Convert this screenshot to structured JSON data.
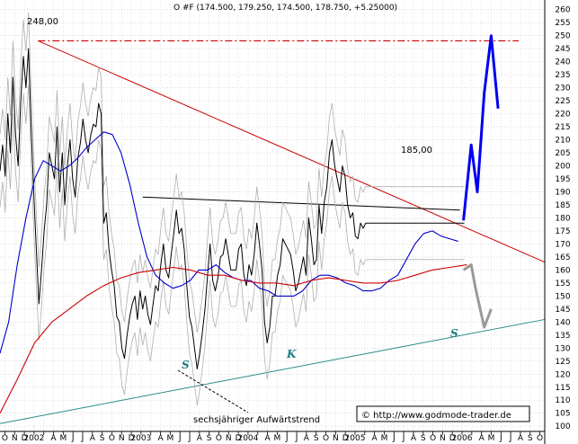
{
  "chart_data": {
    "type": "line",
    "title": "O #F (174.500, 179.250, 174.500, 178.750, +5.25000)",
    "y_ticks": [
      100,
      105,
      110,
      115,
      120,
      125,
      130,
      135,
      140,
      145,
      150,
      155,
      160,
      165,
      170,
      175,
      180,
      185,
      190,
      195,
      200,
      205,
      210,
      215,
      220,
      225,
      230,
      235,
      240,
      245,
      250,
      255,
      260
    ],
    "ylim": [
      98,
      263
    ],
    "x_month_labels": [
      "O",
      "N",
      "D",
      "2002",
      "",
      "A",
      "M",
      "J",
      "J",
      "A",
      "S",
      "O",
      "N",
      "D",
      "2003",
      "",
      "A",
      "M",
      "J",
      "J",
      "A",
      "S",
      "O",
      "N",
      "D",
      "2004",
      "",
      "A",
      "M",
      "J",
      "J",
      "A",
      "S",
      "O",
      "N",
      "D",
      "2005",
      "",
      "A",
      "M",
      "J",
      "J",
      "A",
      "S",
      "O",
      "N",
      "D",
      "2006",
      "",
      "A",
      "M",
      "J",
      "J",
      "A",
      "S",
      "O"
    ],
    "x_year_labels": [
      "2002",
      "2003",
      "2004",
      "2005",
      "2006"
    ],
    "grid": true,
    "annotations": {
      "high_label": "248,00",
      "neckline_label": "185,00",
      "shoulder_left": "S",
      "head": "K",
      "shoulder_right": "S",
      "trend_label": "sechsjähriger Aufwärtstrend",
      "copyright": "© http://www.godmode-trader.de"
    },
    "series": [
      {
        "color": "#000000",
        "kind": "price",
        "x": [
          0,
          3,
          6,
          9,
          12,
          15,
          18,
          21,
          24,
          27,
          30,
          33,
          36,
          39,
          42,
          45,
          48,
          51,
          54,
          57,
          60,
          63,
          66,
          69,
          72,
          75,
          78,
          81,
          84,
          87,
          90,
          93,
          96,
          99,
          102,
          105,
          108,
          111,
          114,
          117,
          120,
          123,
          126,
          129,
          132,
          135,
          138,
          141,
          144,
          147,
          150,
          153,
          156,
          159,
          162,
          165,
          168,
          171,
          174,
          177,
          180,
          183,
          186,
          189,
          192,
          195,
          198,
          201,
          204,
          207,
          210,
          213,
          216,
          219,
          222,
          225,
          228,
          231,
          234,
          237,
          240,
          243,
          246,
          249,
          252,
          255,
          258,
          261,
          264,
          267,
          270,
          273,
          276,
          279,
          282,
          285,
          288,
          291,
          294,
          297,
          300,
          303,
          306,
          309,
          312,
          315,
          318,
          321,
          324,
          327,
          330,
          333,
          336,
          339,
          342,
          345,
          348,
          351,
          354,
          357,
          360,
          363,
          366,
          369,
          372,
          375,
          378,
          381,
          384,
          387,
          390,
          393,
          396,
          399,
          402,
          405,
          408,
          411,
          414,
          417,
          420,
          423,
          426,
          429,
          432,
          435,
          438,
          441,
          444,
          447,
          450,
          453,
          456,
          459,
          462,
          465,
          468,
          471,
          474,
          477,
          480,
          483,
          486,
          489,
          492,
          495,
          498,
          501,
          504,
          507,
          510,
          513,
          516,
          519,
          522,
          525,
          528,
          531,
          534,
          537
        ],
        "values": [
          198,
          208,
          196,
          220,
          205,
          234,
          212,
          200,
          225,
          242,
          230,
          245,
          215,
          190,
          168,
          147,
          160,
          175,
          185,
          205,
          200,
          195,
          215,
          190,
          205,
          185,
          200,
          210,
          195,
          188,
          203,
          209,
          218,
          210,
          205,
          212,
          216,
          215,
          224,
          220,
          178,
          182,
          168,
          160,
          154,
          142,
          140,
          130,
          126,
          135,
          142,
          147,
          150,
          141,
          152,
          145,
          150,
          143,
          139,
          147,
          154,
          152,
          162,
          170,
          160,
          157,
          166,
          174,
          183,
          174,
          176,
          168,
          154,
          142,
          138,
          130,
          122,
          128,
          136,
          145,
          158,
          170,
          156,
          152,
          157,
          165,
          166,
          172,
          166,
          160,
          160,
          160,
          168,
          170,
          158,
          154,
          162,
          158,
          166,
          178,
          170,
          160,
          140,
          132,
          138,
          150,
          150,
          158,
          162,
          172,
          170,
          168,
          166,
          160,
          152,
          155,
          160,
          165,
          158,
          180,
          172,
          162,
          164,
          185,
          174,
          186,
          192,
          205,
          210,
          200,
          195,
          190,
          200,
          196,
          185,
          180,
          182,
          173,
          172,
          178,
          176,
          178,
          178,
          178,
          178,
          178,
          178,
          178,
          178,
          178,
          178,
          178,
          178,
          178,
          178,
          178,
          178,
          178,
          178,
          178,
          178,
          178,
          178,
          178,
          178,
          178,
          178,
          178,
          178,
          178,
          178,
          178,
          178,
          178,
          178,
          178,
          178,
          178,
          178,
          178
        ]
      },
      {
        "color": "#0000cc",
        "kind": "moving-average",
        "x": [
          0,
          10,
          20,
          30,
          40,
          50,
          60,
          70,
          80,
          90,
          100,
          110,
          120,
          130,
          140,
          150,
          160,
          170,
          180,
          190,
          200,
          210,
          220,
          230,
          240,
          250,
          260,
          270,
          280,
          290,
          300,
          310,
          320,
          330,
          340,
          350,
          360,
          370,
          380,
          390,
          400,
          410,
          420,
          430,
          440,
          450,
          460,
          470,
          480,
          490,
          500,
          510,
          520,
          530
        ],
        "values": [
          128,
          140,
          162,
          180,
          195,
          202,
          200,
          198,
          200,
          203,
          207,
          210,
          213,
          212,
          205,
          193,
          178,
          165,
          158,
          155,
          153,
          154,
          156,
          160,
          160,
          162,
          159,
          157,
          156,
          156,
          153,
          152,
          150,
          150,
          150,
          152,
          156,
          158,
          158,
          157,
          155,
          154,
          152,
          152,
          153,
          156,
          158,
          164,
          170,
          174,
          175,
          173,
          172,
          171
        ]
      },
      {
        "color": "#cc0000",
        "kind": "moving-average",
        "x": [
          0,
          20,
          40,
          60,
          80,
          100,
          120,
          140,
          160,
          180,
          200,
          220,
          240,
          260,
          280,
          300,
          320,
          340,
          360,
          380,
          400,
          420,
          440,
          460,
          480,
          500,
          520,
          540
        ],
        "values": [
          105,
          118,
          132,
          140,
          145,
          150,
          154,
          157,
          159,
          160,
          161,
          160,
          158,
          158,
          156,
          155,
          155,
          154,
          156,
          157,
          156,
          155,
          155,
          156,
          158,
          160,
          161,
          162
        ]
      },
      {
        "color": "#0000ee",
        "kind": "forecast",
        "x": [
          536,
          545,
          552,
          560,
          568,
          576
        ],
        "values": [
          179,
          208,
          190,
          228,
          250,
          222
        ]
      },
      {
        "color": "#999999",
        "kind": "forecast",
        "x": [
          536,
          545,
          550,
          560,
          568
        ],
        "values": [
          160,
          162,
          153,
          138,
          145
        ]
      }
    ],
    "trendlines": [
      {
        "name": "downtrend",
        "color": "#cc0000",
        "x": [
          44,
          630
        ],
        "values": [
          248,
          163
        ]
      },
      {
        "name": "uptrend",
        "color": "#2a8a8a",
        "x": [
          0,
          630
        ],
        "values": [
          101,
          141
        ]
      },
      {
        "name": "neckline",
        "color": "#000000",
        "x": [
          165,
          532
        ],
        "values": [
          188,
          183
        ]
      },
      {
        "name": "resistance",
        "color": "#cc0000",
        "x": [
          44,
          600
        ],
        "values": [
          248,
          248
        ]
      }
    ]
  }
}
